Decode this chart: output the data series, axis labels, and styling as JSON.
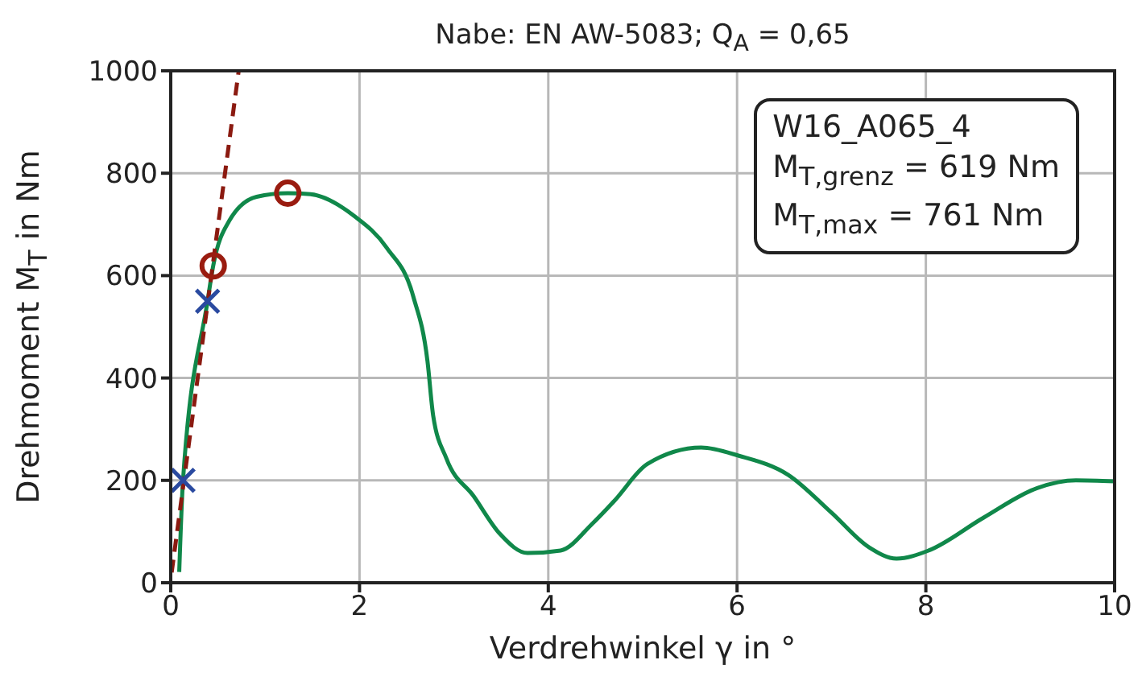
{
  "chart_data": {
    "type": "line",
    "title": "Nabe: EN AW-5083; Q$_{A}$ = 0,65",
    "xlabel": "Verdrehwinkel γ in °",
    "ylabel": "Drehmoment M$_{T}$ in Nm",
    "xlim": [
      0,
      10
    ],
    "xticks": [
      0,
      2,
      4,
      6,
      8,
      10
    ],
    "ylim": [
      0,
      1000
    ],
    "yticks": [
      0,
      200,
      400,
      600,
      800,
      1000
    ],
    "grid": true,
    "legend": false,
    "annotations": [
      "W16_A065_4",
      "M$_{T,grenz}$ = 619 Nm",
      "M$_{T,max}$ = 761 Nm"
    ],
    "series": [
      {
        "color": "#10884a",
        "line_style": "solid",
        "marker": "none",
        "x": [
          0.09,
          0.13,
          0.39,
          0.45,
          0.62,
          0.91,
          1.24,
          1.48,
          1.94,
          2.29,
          2.57,
          2.72,
          2.78,
          2.92,
          3.21,
          3.49,
          3.78,
          4.13,
          4.47,
          4.7,
          5.05,
          5.62,
          6.02,
          6.54,
          7.0,
          7.4,
          7.69,
          8.03,
          8.61,
          9.18,
          9.59,
          10
        ],
        "values": [
          21,
          200,
          550,
          619,
          707,
          754,
          761,
          759,
          717,
          654,
          559,
          433,
          327,
          243,
          169,
          95,
          58,
          63,
          116,
          160,
          232,
          264,
          248,
          211,
          137,
          69,
          47,
          63,
          127,
          185,
          200,
          198
        ]
      },
      {
        "color": "#8b1a10",
        "line_style": "dashed",
        "marker": "none",
        "x": [
          0.01,
          0.72
        ],
        "values": [
          20,
          1000
        ]
      },
      {
        "type": "scatter",
        "color": "#2a4aa0",
        "marker": "cross",
        "x": [
          0.13,
          0.39
        ],
        "values": [
          200,
          550
        ]
      },
      {
        "type": "scatter",
        "color": "#9a1c10",
        "marker": "circle",
        "x": [
          0.45,
          1.24
        ],
        "values": [
          619,
          761
        ]
      }
    ]
  }
}
